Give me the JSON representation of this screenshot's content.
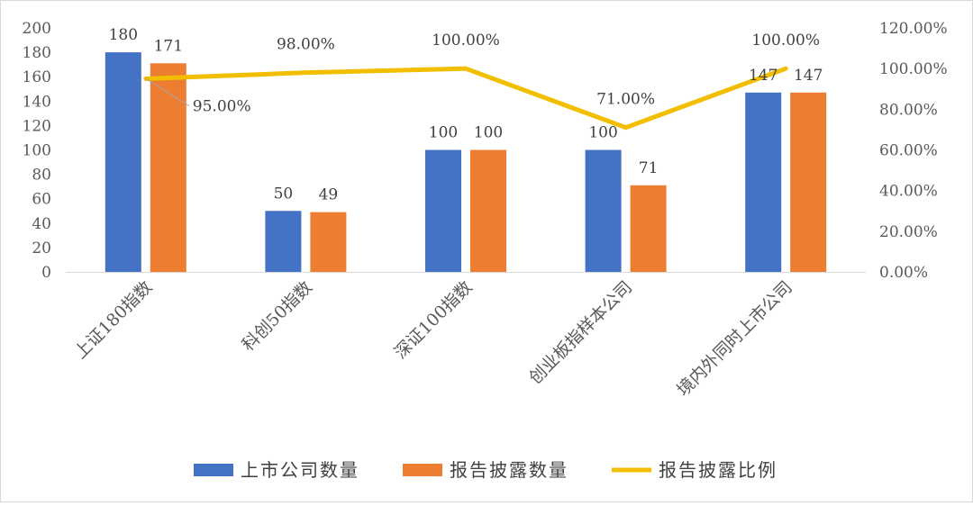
{
  "chart_data": {
    "type": "bar",
    "categories": [
      "上证180指数",
      "科创50指数",
      "深证100指数",
      "创业板指样本公司",
      "境内外同时上市公司"
    ],
    "series": [
      {
        "name": "上市公司数量",
        "type": "bar",
        "axis": "left",
        "color": "#4472C4",
        "values": [
          180,
          50,
          100,
          100,
          147
        ]
      },
      {
        "name": "报告披露数量",
        "type": "bar",
        "axis": "left",
        "color": "#ED7D31",
        "values": [
          171,
          49,
          100,
          71,
          147
        ]
      },
      {
        "name": "报告披露比例",
        "type": "line",
        "axis": "right",
        "color": "#F2BE00",
        "values": [
          0.95,
          0.98,
          1.0,
          0.71,
          1.0
        ]
      }
    ],
    "bar_labels": [
      [
        "180",
        "50",
        "100",
        "100",
        "147"
      ],
      [
        "171",
        "49",
        "100",
        "71",
        "147"
      ]
    ],
    "line_labels": [
      "95.00%",
      "98.00%",
      "100.00%",
      "71.00%",
      "100.00%"
    ],
    "y_left": {
      "ylim": [
        0,
        200
      ],
      "ticks": [
        "0",
        "20",
        "40",
        "60",
        "80",
        "100",
        "120",
        "140",
        "160",
        "180",
        "200"
      ]
    },
    "y_right": {
      "ylim": [
        0,
        1.2
      ],
      "ticks": [
        "0.00%",
        "20.00%",
        "40.00%",
        "60.00%",
        "80.00%",
        "100.00%",
        "120.00%"
      ]
    },
    "legend_position": "bottom",
    "grid": false
  }
}
